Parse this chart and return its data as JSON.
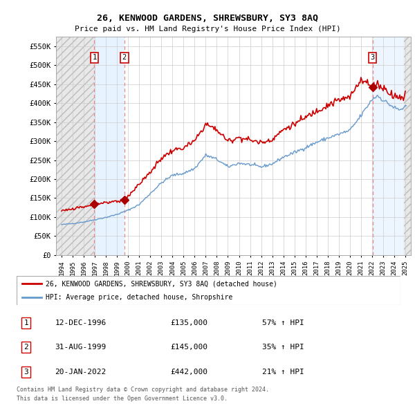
{
  "title": "26, KENWOOD GARDENS, SHREWSBURY, SY3 8AQ",
  "subtitle": "Price paid vs. HM Land Registry's House Price Index (HPI)",
  "legend_line1": "26, KENWOOD GARDENS, SHREWSBURY, SY3 8AQ (detached house)",
  "legend_line2": "HPI: Average price, detached house, Shropshire",
  "footer1": "Contains HM Land Registry data © Crown copyright and database right 2024.",
  "footer2": "This data is licensed under the Open Government Licence v3.0.",
  "sale_dates": [
    1996.958,
    1999.664,
    2022.054
  ],
  "sale_prices": [
    135000,
    145000,
    442000
  ],
  "sale_labels": [
    "1",
    "2",
    "3"
  ],
  "table_rows": [
    [
      "1",
      "12-DEC-1996",
      "£135,000",
      "57% ↑ HPI"
    ],
    [
      "2",
      "31-AUG-1999",
      "£145,000",
      "35% ↑ HPI"
    ],
    [
      "3",
      "20-JAN-2022",
      "£442,000",
      "21% ↑ HPI"
    ]
  ],
  "ylim": [
    0,
    575000
  ],
  "yticks": [
    0,
    50000,
    100000,
    150000,
    200000,
    250000,
    300000,
    350000,
    400000,
    450000,
    500000,
    550000
  ],
  "ytick_labels": [
    "£0",
    "£50K",
    "£100K",
    "£150K",
    "£200K",
    "£250K",
    "£300K",
    "£350K",
    "£400K",
    "£450K",
    "£500K",
    "£550K"
  ],
  "xlim": [
    1993.5,
    2025.5
  ],
  "xticks": [
    1994,
    1995,
    1996,
    1997,
    1998,
    1999,
    2000,
    2001,
    2002,
    2003,
    2004,
    2005,
    2006,
    2007,
    2008,
    2009,
    2010,
    2011,
    2012,
    2013,
    2014,
    2015,
    2016,
    2017,
    2018,
    2019,
    2020,
    2021,
    2022,
    2023,
    2024,
    2025
  ],
  "hpi_color": "#6699cc",
  "sale_line_color": "#cc0000",
  "vline_color": "#ee8888",
  "marker_color": "#aa0000",
  "background_color": "#ffffff",
  "hatch_bg_color": "#e8e8e8",
  "blue_shade_color": "#ddeeff",
  "label_box_color": "#cc0000"
}
